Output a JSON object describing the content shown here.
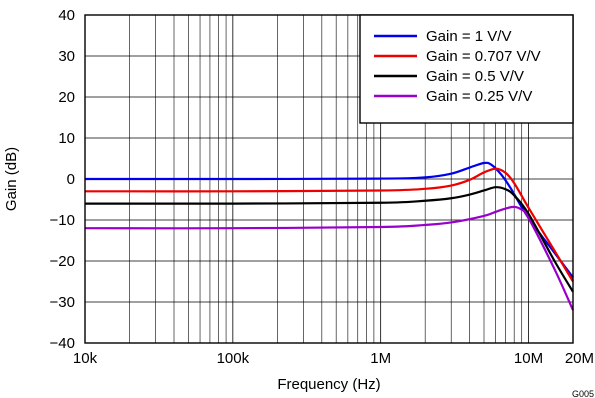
{
  "chart_data": {
    "type": "line",
    "xlabel": "Frequency (Hz)",
    "ylabel": "Gain (dB)",
    "xscale": "log",
    "xlim": [
      10000,
      20000000
    ],
    "ylim": [
      -40,
      40
    ],
    "grid": true,
    "legend_position": "top-right",
    "figure_id": "G005",
    "x_ticks": [
      {
        "value": 10000,
        "label": "10k"
      },
      {
        "value": 100000,
        "label": "100k"
      },
      {
        "value": 1000000,
        "label": "1M"
      },
      {
        "value": 10000000,
        "label": "10M"
      },
      {
        "value": 20000000,
        "label": "20M"
      }
    ],
    "y_ticks": [
      {
        "value": 40,
        "label": "40"
      },
      {
        "value": 30,
        "label": "30"
      },
      {
        "value": 20,
        "label": "20"
      },
      {
        "value": 10,
        "label": "10"
      },
      {
        "value": 0,
        "label": "0"
      },
      {
        "value": -10,
        "label": "−10"
      },
      {
        "value": -20,
        "label": "−20"
      },
      {
        "value": -30,
        "label": "−30"
      },
      {
        "value": -40,
        "label": "−40"
      }
    ],
    "series": [
      {
        "name": "Gain = 1 V/V",
        "color": "#0000ee",
        "x": [
          10000,
          100000,
          1000000,
          2000000,
          3000000,
          4000000,
          5000000,
          5600000,
          6500000,
          7500000,
          10000000,
          15000000,
          20000000
        ],
        "y": [
          0,
          0,
          0.1,
          0.4,
          1.3,
          2.8,
          3.9,
          3.5,
          1.2,
          -2.0,
          -9.5,
          -18.0,
          -24.0
        ]
      },
      {
        "name": "Gain = 0.707 V/V",
        "color": "#ee0000",
        "x": [
          10000,
          100000,
          1000000,
          2000000,
          3000000,
          4000000,
          5000000,
          6000000,
          7000000,
          8000000,
          10000000,
          15000000,
          20000000
        ],
        "y": [
          -3,
          -3,
          -2.8,
          -2.4,
          -1.6,
          -0.2,
          1.6,
          2.5,
          1.5,
          -1.0,
          -7.0,
          -17.5,
          -25.0
        ]
      },
      {
        "name": "Gain = 0.5 V/V",
        "color": "#000000",
        "x": [
          10000,
          100000,
          1000000,
          2000000,
          3000000,
          4000000,
          5000000,
          6000000,
          7000000,
          8000000,
          10000000,
          15000000,
          20000000
        ],
        "y": [
          -6,
          -6,
          -5.8,
          -5.3,
          -4.7,
          -3.8,
          -2.8,
          -2.0,
          -2.5,
          -4.0,
          -8.5,
          -20.0,
          -27.5
        ]
      },
      {
        "name": "Gain = 0.25 V/V",
        "color": "#9900cc",
        "x": [
          10000,
          100000,
          1000000,
          2000000,
          3000000,
          5000000,
          6000000,
          7000000,
          8000000,
          9000000,
          10000000,
          15000000,
          20000000
        ],
        "y": [
          -12,
          -12,
          -11.7,
          -11.2,
          -10.6,
          -9.0,
          -8.0,
          -7.2,
          -6.8,
          -7.5,
          -9.5,
          -22.0,
          -32.0
        ]
      }
    ]
  }
}
